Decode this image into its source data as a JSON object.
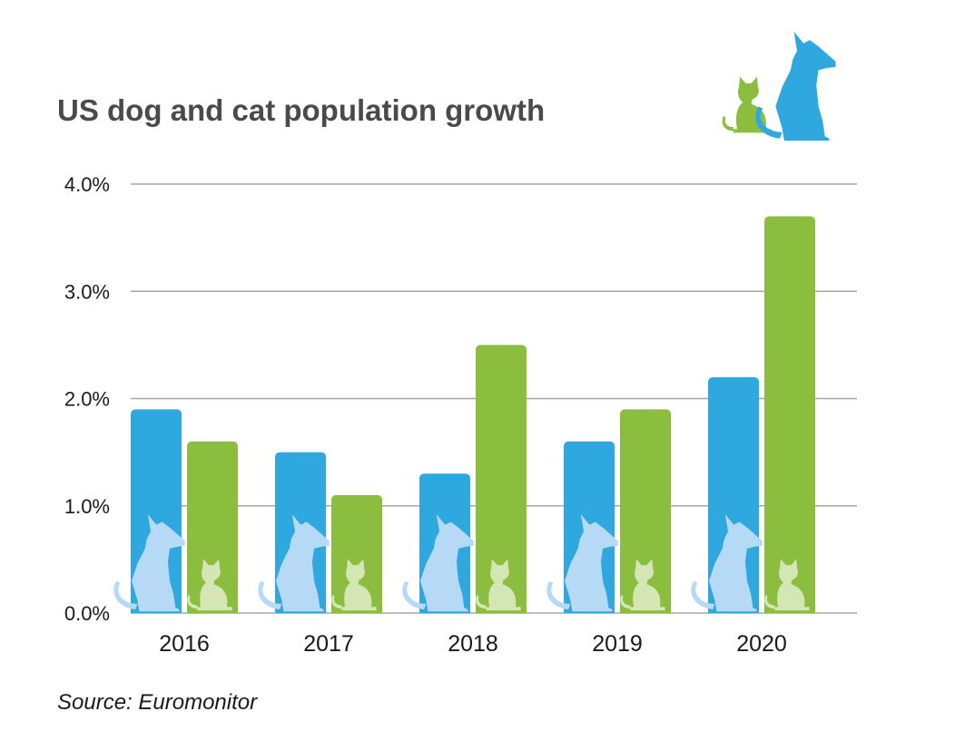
{
  "colors": {
    "dog": "#2ea8df",
    "cat": "#8bbd3f",
    "dog_silhouette": "#b6d9f5",
    "cat_silhouette": "#d3e6b4"
  },
  "icons": [
    "cat-and-dog-logo-icon",
    "dog-silhouette-icon",
    "cat-silhouette-icon"
  ],
  "chart_data": {
    "type": "bar",
    "title": "US dog and cat population growth",
    "categories": [
      "2016",
      "2017",
      "2018",
      "2019",
      "2020"
    ],
    "series": [
      {
        "name": "Dog",
        "values": [
          1.9,
          1.5,
          1.3,
          1.6,
          2.2
        ]
      },
      {
        "name": "Cat",
        "values": [
          1.6,
          1.1,
          2.5,
          1.9,
          3.7
        ]
      }
    ],
    "ylim": [
      0,
      4
    ],
    "yticks": [
      0,
      1,
      2,
      3,
      4
    ],
    "ytick_labels": [
      "0.0%",
      "1.0%",
      "2.0%",
      "3.0%",
      "4.0%"
    ],
    "xlabel": "",
    "ylabel": "",
    "grid": true,
    "legend": "none",
    "source": "Source: Euromonitor"
  }
}
